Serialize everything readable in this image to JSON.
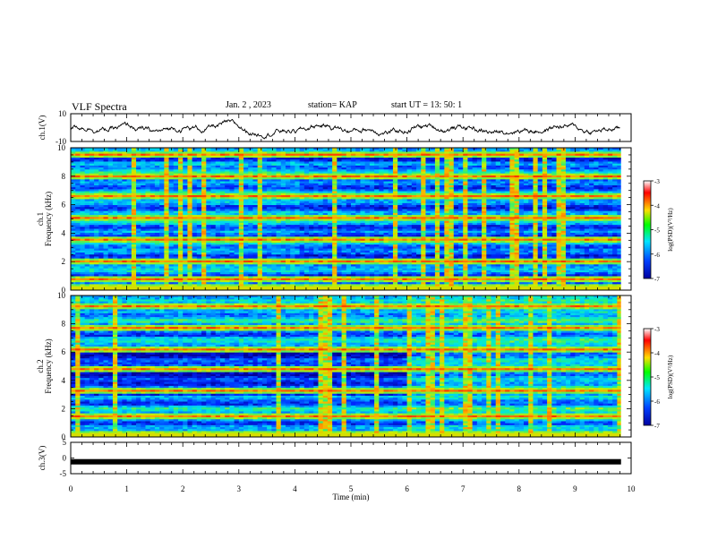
{
  "header": {
    "title": "VLF Spectra",
    "date": "Jan.  2  , 2023",
    "station": "station= KAP",
    "start_time": "start  UT  =   13: 50: 1"
  },
  "chart_data": [
    {
      "type": "line",
      "panel": "ch1-waveform",
      "ylabel": "ch.1(V)",
      "ylim": [
        -10,
        10
      ],
      "y_tick_labels": [
        "10",
        "-10"
      ],
      "xlim": [
        0,
        10
      ]
    },
    {
      "type": "heatmap",
      "panel": "ch1-spectrogram",
      "ylabel": "ch.1\nFrequency (kHz)",
      "ylim": [
        0,
        10
      ],
      "y_ticks": [
        "0",
        "2",
        "4",
        "6",
        "8",
        "10"
      ],
      "xlim": [
        0,
        10
      ],
      "colorbar": {
        "label": "log(PSD)(V²/Hz)",
        "range": [
          -7,
          -3
        ],
        "ticks": [
          "-3",
          "-4",
          "-5",
          "-6",
          "-7"
        ]
      },
      "strong_lines_khz": [
        0.3,
        0.9,
        2.1,
        3.6,
        5.1,
        6.6,
        8.1,
        9.6
      ],
      "notes": "noise floor drops after ~4 min; broadband impulses throughout"
    },
    {
      "type": "heatmap",
      "panel": "ch2-spectrogram",
      "ylabel": "ch.2\nFrequency (kHz)",
      "ylim": [
        0,
        10
      ],
      "y_ticks": [
        "0",
        "2",
        "4",
        "6",
        "8",
        "10"
      ],
      "xlim": [
        0,
        10
      ],
      "colorbar": {
        "label": "log(PSD)(V²/Hz)",
        "range": [
          -7,
          -3
        ],
        "ticks": [
          "-3",
          "-4",
          "-5",
          "-6",
          "-7"
        ]
      },
      "strong_lines_khz": [
        0.3,
        1.5,
        3.3,
        4.8,
        6.3,
        7.8,
        9.3
      ],
      "notes": "low-level band 3-6 kHz before 6 min, rises after 6 min"
    },
    {
      "type": "line",
      "panel": "ch3-signal",
      "ylabel": "ch.3(V)",
      "ylim": [
        -5,
        5
      ],
      "y_tick_labels": [
        "5",
        "0",
        "-5"
      ],
      "xlim": [
        0,
        10
      ],
      "level_v": -1.2
    }
  ],
  "xaxis": {
    "label": "Time  (min)",
    "ticks": [
      "0",
      "1",
      "2",
      "3",
      "4",
      "5",
      "6",
      "7",
      "8",
      "9",
      "10"
    ]
  },
  "colors": {
    "trace": "#000000",
    "spectro_low": "#0a1ad6",
    "spectro_mid": "#00e0e8",
    "spectro_high": "#ff2000"
  }
}
